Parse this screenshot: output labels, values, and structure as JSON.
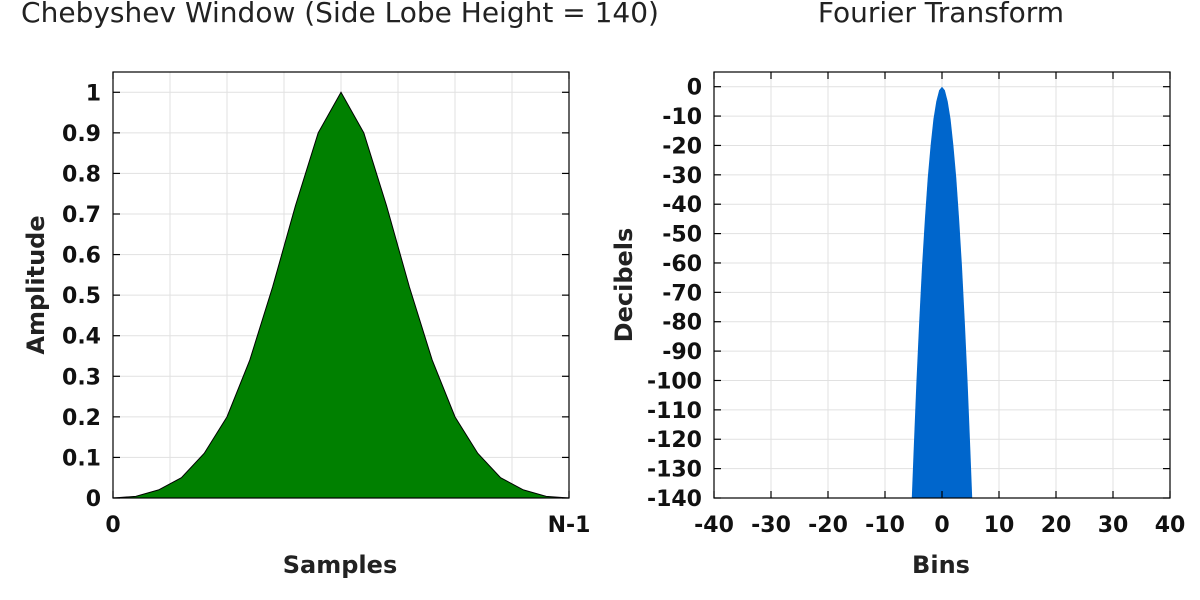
{
  "chart_data": [
    {
      "type": "area",
      "title": "Chebyshev Window (Side Lobe Height = 140)",
      "xlabel": "Samples",
      "ylabel": "Amplitude",
      "xticks": [
        "0",
        "N-1"
      ],
      "yticks": [
        0,
        0.1,
        0.2,
        0.3,
        0.4,
        0.5,
        0.6,
        0.7,
        0.8,
        0.9,
        1
      ],
      "xlim": [
        0,
        1
      ],
      "ylim": [
        0,
        1.05
      ],
      "grid": true,
      "fill_color": "#008000",
      "x": [
        0,
        0.05,
        0.1,
        0.15,
        0.2,
        0.25,
        0.3,
        0.35,
        0.4,
        0.45,
        0.5,
        0.55,
        0.6,
        0.65,
        0.7,
        0.75,
        0.8,
        0.85,
        0.9,
        0.95,
        1
      ],
      "y": [
        0,
        0.004,
        0.02,
        0.05,
        0.11,
        0.2,
        0.34,
        0.52,
        0.72,
        0.9,
        1.0,
        0.9,
        0.72,
        0.52,
        0.34,
        0.2,
        0.11,
        0.05,
        0.02,
        0.004,
        0
      ]
    },
    {
      "type": "area",
      "title": "Fourier Transform",
      "xlabel": "Bins",
      "ylabel": "Decibels",
      "xticks": [
        -40,
        -30,
        -20,
        -10,
        0,
        10,
        20,
        30,
        40
      ],
      "yticks": [
        0,
        -10,
        -20,
        -30,
        -40,
        -50,
        -60,
        -70,
        -80,
        -90,
        -100,
        -110,
        -120,
        -130,
        -140
      ],
      "xlim": [
        -40,
        40
      ],
      "ylim": [
        -140,
        5
      ],
      "grid": true,
      "fill_color": "#0066CC",
      "x": [
        -5.3,
        -5,
        -4.5,
        -4,
        -3.5,
        -3,
        -2.5,
        -2,
        -1.5,
        -1,
        -0.5,
        0,
        0.5,
        1,
        1.5,
        2,
        2.5,
        3,
        3.5,
        4,
        4.5,
        5,
        5.3
      ],
      "y": [
        -140,
        -125,
        -101,
        -80,
        -61,
        -45,
        -31,
        -20,
        -11,
        -5,
        -1.2,
        0,
        -1.2,
        -5,
        -11,
        -20,
        -31,
        -45,
        -61,
        -80,
        -101,
        -125,
        -140
      ]
    }
  ]
}
